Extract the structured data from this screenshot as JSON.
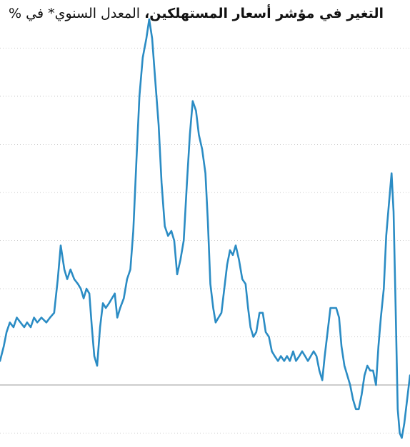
{
  "colors": {
    "line": "#2b8cc4",
    "gridline": "#c8c8c8",
    "zero_line": "#9a9a9a",
    "title": "#111111"
  },
  "chart_data": {
    "type": "line",
    "title": "التغير في مؤشر أسعار المستهلكين،",
    "subtitle": "المعدل السنوي* في %",
    "xlabel": "",
    "ylabel": "",
    "grid": true,
    "grid_style": "dotted",
    "ylim": [
      -1,
      8
    ],
    "yticks": [
      -1,
      0,
      1,
      2,
      3,
      4,
      5,
      6,
      7
    ],
    "xlim": [
      0,
      100
    ],
    "series": [
      {
        "values": [
          [
            0.0,
            0.5
          ],
          [
            0.9,
            0.8
          ],
          [
            1.6,
            1.1
          ],
          [
            2.4,
            1.3
          ],
          [
            3.3,
            1.2
          ],
          [
            4.1,
            1.4
          ],
          [
            5.0,
            1.3
          ],
          [
            5.9,
            1.2
          ],
          [
            6.6,
            1.3
          ],
          [
            7.5,
            1.2
          ],
          [
            8.3,
            1.4
          ],
          [
            9.1,
            1.3
          ],
          [
            10.1,
            1.4
          ],
          [
            11.3,
            1.3
          ],
          [
            12.2,
            1.4
          ],
          [
            13.2,
            1.5
          ],
          [
            14.1,
            2.2
          ],
          [
            14.8,
            2.9
          ],
          [
            15.7,
            2.4
          ],
          [
            16.4,
            2.2
          ],
          [
            17.2,
            2.4
          ],
          [
            18.1,
            2.2
          ],
          [
            19.0,
            2.1
          ],
          [
            19.7,
            2.0
          ],
          [
            20.4,
            1.8
          ],
          [
            21.1,
            2.0
          ],
          [
            21.8,
            1.9
          ],
          [
            22.4,
            1.2
          ],
          [
            23.0,
            0.6
          ],
          [
            23.7,
            0.4
          ],
          [
            24.4,
            1.2
          ],
          [
            25.1,
            1.7
          ],
          [
            25.8,
            1.6
          ],
          [
            26.6,
            1.7
          ],
          [
            27.3,
            1.8
          ],
          [
            28.0,
            1.9
          ],
          [
            28.6,
            1.4
          ],
          [
            29.3,
            1.6
          ],
          [
            30.2,
            1.8
          ],
          [
            31.0,
            2.2
          ],
          [
            31.8,
            2.4
          ],
          [
            32.5,
            3.2
          ],
          [
            33.3,
            4.7
          ],
          [
            34.0,
            6.0
          ],
          [
            34.8,
            6.8
          ],
          [
            35.7,
            7.2
          ],
          [
            36.4,
            7.6
          ],
          [
            37.1,
            7.2
          ],
          [
            37.8,
            6.4
          ],
          [
            38.7,
            5.4
          ],
          [
            39.4,
            4.2
          ],
          [
            40.2,
            3.3
          ],
          [
            41.0,
            3.1
          ],
          [
            41.8,
            3.2
          ],
          [
            42.5,
            3.0
          ],
          [
            43.2,
            2.3
          ],
          [
            44.0,
            2.6
          ],
          [
            44.8,
            3.0
          ],
          [
            45.6,
            4.2
          ],
          [
            46.3,
            5.2
          ],
          [
            47.0,
            5.9
          ],
          [
            47.8,
            5.7
          ],
          [
            48.5,
            5.2
          ],
          [
            49.3,
            4.9
          ],
          [
            50.1,
            4.4
          ],
          [
            50.7,
            3.4
          ],
          [
            51.3,
            2.1
          ],
          [
            52.0,
            1.6
          ],
          [
            52.6,
            1.3
          ],
          [
            53.3,
            1.4
          ],
          [
            54.0,
            1.5
          ],
          [
            54.7,
            2.0
          ],
          [
            55.4,
            2.5
          ],
          [
            56.1,
            2.8
          ],
          [
            56.8,
            2.7
          ],
          [
            57.5,
            2.9
          ],
          [
            58.3,
            2.6
          ],
          [
            59.1,
            2.2
          ],
          [
            59.9,
            2.1
          ],
          [
            60.5,
            1.6
          ],
          [
            61.1,
            1.2
          ],
          [
            61.8,
            1.0
          ],
          [
            62.5,
            1.1
          ],
          [
            63.3,
            1.5
          ],
          [
            64.1,
            1.5
          ],
          [
            64.8,
            1.1
          ],
          [
            65.6,
            1.0
          ],
          [
            66.3,
            0.7
          ],
          [
            67.0,
            0.6
          ],
          [
            67.8,
            0.5
          ],
          [
            68.5,
            0.6
          ],
          [
            69.3,
            0.5
          ],
          [
            70.0,
            0.6
          ],
          [
            70.7,
            0.5
          ],
          [
            71.5,
            0.7
          ],
          [
            72.2,
            0.5
          ],
          [
            73.0,
            0.6
          ],
          [
            73.7,
            0.7
          ],
          [
            74.4,
            0.6
          ],
          [
            75.1,
            0.5
          ],
          [
            75.8,
            0.6
          ],
          [
            76.5,
            0.7
          ],
          [
            77.2,
            0.6
          ],
          [
            77.9,
            0.3
          ],
          [
            78.6,
            0.1
          ],
          [
            79.2,
            0.6
          ],
          [
            79.9,
            1.1
          ],
          [
            80.6,
            1.6
          ],
          [
            81.3,
            1.6
          ],
          [
            82.0,
            1.6
          ],
          [
            82.7,
            1.4
          ],
          [
            83.3,
            0.8
          ],
          [
            84.0,
            0.4
          ],
          [
            84.7,
            0.2
          ],
          [
            85.4,
            0.0
          ],
          [
            86.1,
            -0.3
          ],
          [
            86.8,
            -0.5
          ],
          [
            87.5,
            -0.5
          ],
          [
            88.2,
            -0.2
          ],
          [
            88.9,
            0.2
          ],
          [
            89.6,
            0.4
          ],
          [
            90.3,
            0.3
          ],
          [
            91.0,
            0.3
          ],
          [
            91.7,
            0.0
          ],
          [
            92.3,
            0.8
          ],
          [
            92.9,
            1.4
          ],
          [
            93.6,
            2.0
          ],
          [
            94.2,
            3.1
          ],
          [
            94.9,
            3.8
          ],
          [
            95.5,
            4.4
          ],
          [
            96.0,
            3.6
          ],
          [
            96.5,
            1.6
          ],
          [
            97.0,
            -0.5
          ],
          [
            97.5,
            -1.0
          ],
          [
            98.0,
            -1.1
          ],
          [
            98.6,
            -0.8
          ],
          [
            99.3,
            -0.3
          ],
          [
            100.0,
            0.2
          ]
        ]
      }
    ]
  }
}
